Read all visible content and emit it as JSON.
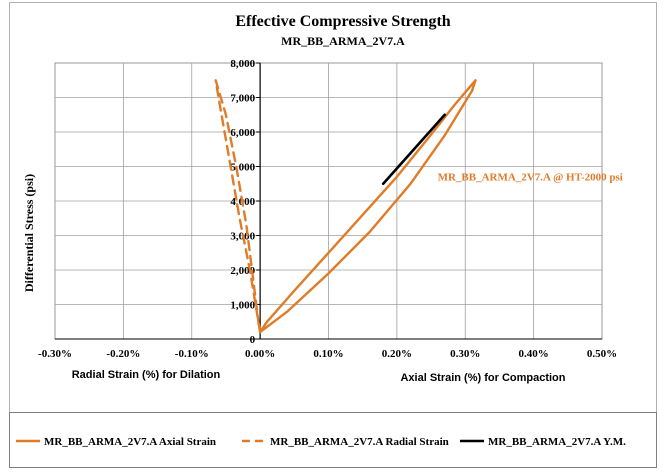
{
  "chart_data": {
    "type": "line",
    "title": "Effective Compressive Strength",
    "subtitle": "MR_BB_ARMA_2V7.A",
    "ylabel": "Differential  Stress (psi)",
    "xlabel_left": "Radial Strain (%) for Dilation",
    "xlabel_right": "Axial Strain (%) for Compaction",
    "xlim": [
      -0.003,
      0.005
    ],
    "ylim": [
      0,
      8000
    ],
    "grid": true,
    "legend_position": "bottom",
    "x_ticks": [
      "-0.30%",
      "-0.20%",
      "-0.10%",
      "0.00%",
      "0.10%",
      "0.20%",
      "0.30%",
      "0.40%",
      "0.50%"
    ],
    "y_ticks": [
      "0",
      "1,000",
      "2,000",
      "3,000",
      "4,000",
      "5,000",
      "6,000",
      "7,000",
      "8,000"
    ],
    "annotation": "MR_BB_ARMA_2V7.A @ HT-2000 psi",
    "series": [
      {
        "name": "MR_BB_ARMA_2V7.A Axial Strain",
        "color": "#E07B28",
        "style": "solid",
        "x": [
          0.0,
          0.0004,
          0.001,
          0.0016,
          0.0022,
          0.0027,
          0.0031,
          0.00315,
          0.00285,
          0.00245,
          0.002,
          0.0015,
          0.001,
          0.0005,
          0.0001,
          0.0
        ],
        "y": [
          200,
          800,
          1900,
          3100,
          4500,
          5900,
          7200,
          7500,
          6800,
          5800,
          4700,
          3600,
          2500,
          1400,
          500,
          200
        ]
      },
      {
        "name": "MR_BB_ARMA_2V7.A Radial Strain",
        "color": "#E07B28",
        "style": "dashed",
        "x": [
          0.0,
          -5e-05,
          -0.00015,
          -0.0003,
          -0.00045,
          -0.0006,
          -0.00065,
          -0.0005,
          -0.00035,
          -0.0002,
          -0.0001,
          -2e-05
        ],
        "y": [
          200,
          800,
          2000,
          3500,
          5200,
          6900,
          7500,
          6500,
          5000,
          3300,
          1700,
          400
        ]
      },
      {
        "name": "MR_BB_ARMA_2V7.A Y.M.",
        "color": "#000000",
        "style": "solid",
        "x": [
          0.0018,
          0.0027
        ],
        "y": [
          4500,
          6500
        ]
      }
    ]
  }
}
